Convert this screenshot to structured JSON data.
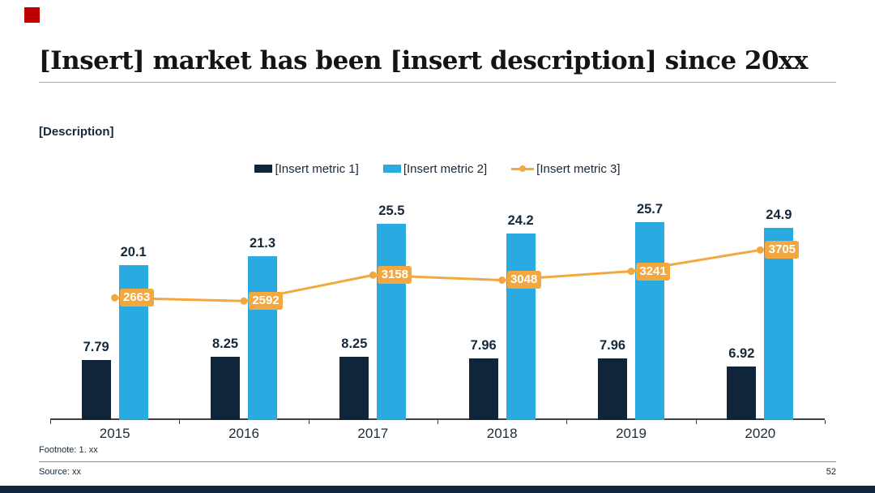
{
  "slide": {
    "title": "[Insert] market has been [insert description] since 20xx",
    "description_label": "[Description]",
    "footnote": "Footnote: 1. xx",
    "source": "Source: xx",
    "page_number": "52"
  },
  "colors": {
    "navy": "#10253a",
    "blue": "#29abe2",
    "orange": "#f2a83e",
    "accent_red": "#c00000",
    "text_dark": "#16283c",
    "axis_gray": "#3f3f3f",
    "divider_gray": "#8c8c8c"
  },
  "chart_data": {
    "type": "combo_bar_line",
    "categories": [
      "2015",
      "2016",
      "2017",
      "2018",
      "2019",
      "2020"
    ],
    "series": [
      {
        "name": "[Insert metric 1]",
        "type": "bar",
        "axis": "primary",
        "color": "#10253a",
        "values": [
          7.79,
          8.25,
          8.25,
          7.96,
          7.96,
          6.92
        ],
        "labels": [
          "7.79",
          "8.25",
          "8.25",
          "7.96",
          "7.96",
          "6.92"
        ]
      },
      {
        "name": "[Insert metric 2]",
        "type": "bar",
        "axis": "primary",
        "color": "#29abe2",
        "values": [
          20.1,
          21.3,
          25.5,
          24.2,
          25.7,
          24.9
        ],
        "labels": [
          "20.1",
          "21.3",
          "25.5",
          "24.2",
          "25.7",
          "24.9"
        ]
      },
      {
        "name": "[Insert metric 3]",
        "type": "line",
        "axis": "secondary",
        "color": "#f2a83e",
        "values": [
          2663,
          2592,
          3158,
          3048,
          3241,
          3705
        ],
        "labels": [
          "2663",
          "2592",
          "3158",
          "3048",
          "3241",
          "3705"
        ]
      }
    ],
    "y1lim": [
      0,
      28
    ],
    "y2lim": [
      0,
      4700
    ],
    "grid": false,
    "legend_position": "top-center",
    "data_labels": true
  }
}
